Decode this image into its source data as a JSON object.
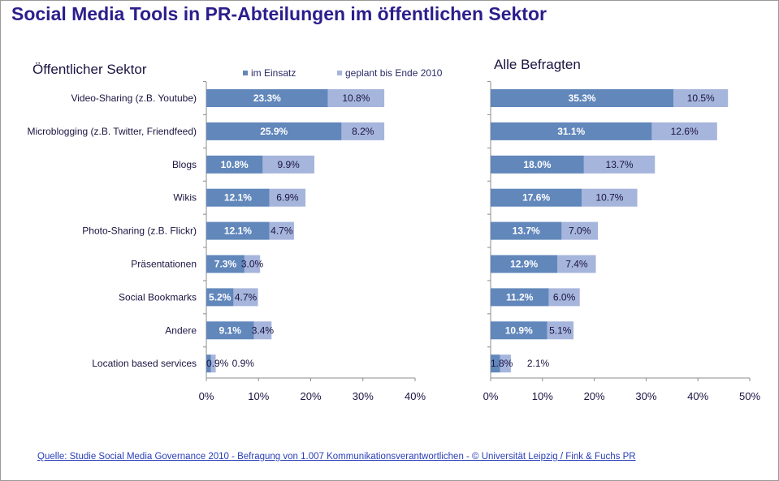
{
  "title": "Social Media Tools in PR-Abteilungen im öffentlichen Sektor",
  "legend": {
    "series1": "im Einsatz",
    "series2": "geplant bis Ende 2010"
  },
  "colors": {
    "series1": "#6187bb",
    "series2": "#a6b5dc",
    "title": "#2b1e8c"
  },
  "source": "Quelle: Studie Social Media Governance 2010 - Befragung von 1.007 Kommunikationsverantwortlichen  - ©  Universität Leipzig / Fink & Fuchs PR",
  "chart_data": [
    {
      "type": "bar",
      "orientation": "horizontal",
      "stacked": true,
      "title": "Öffentlicher Sektor",
      "categories": [
        "Video-Sharing (z.B. Youtube)",
        "Microblogging (z.B. Twitter, Friendfeed)",
        "Blogs",
        "Wikis",
        "Photo-Sharing (z.B. Flickr)",
        "Präsentationen",
        "Social Bookmarks",
        "Andere",
        "Location based services"
      ],
      "series": [
        {
          "name": "im Einsatz",
          "values": [
            23.3,
            25.9,
            10.8,
            12.1,
            12.1,
            7.3,
            5.2,
            9.1,
            0.9
          ]
        },
        {
          "name": "geplant bis Ende 2010",
          "values": [
            10.8,
            8.2,
            9.9,
            6.9,
            4.7,
            3.0,
            4.7,
            3.4,
            0.9
          ]
        }
      ],
      "labels1": [
        "23.3%",
        "25.9%",
        "10.8%",
        "12.1%",
        "12.1%",
        "7.3%",
        "5.2%",
        "9.1%",
        "0.9%"
      ],
      "labels2": [
        "10.8%",
        "8.2%",
        "9.9%",
        "6.9%",
        "4.7%",
        "3.0%",
        "4.7%",
        "3.4%",
        "0.9%"
      ],
      "xlim": [
        0,
        40
      ],
      "xticks": [
        "0%",
        "10%",
        "20%",
        "30%",
        "40%"
      ],
      "legend_position": "top",
      "grid": false
    },
    {
      "type": "bar",
      "orientation": "horizontal",
      "stacked": true,
      "title": "Alle Befragten",
      "categories": [
        "Video-Sharing (z.B. Youtube)",
        "Microblogging (z.B. Twitter, Friendfeed)",
        "Blogs",
        "Wikis",
        "Photo-Sharing (z.B. Flickr)",
        "Präsentationen",
        "Social Bookmarks",
        "Andere",
        "Location based services"
      ],
      "series": [
        {
          "name": "im Einsatz",
          "values": [
            35.3,
            31.1,
            18.0,
            17.6,
            13.7,
            12.9,
            11.2,
            10.9,
            1.8
          ]
        },
        {
          "name": "geplant bis Ende 2010",
          "values": [
            10.5,
            12.6,
            13.7,
            10.7,
            7.0,
            7.4,
            6.0,
            5.1,
            2.1
          ]
        }
      ],
      "labels1": [
        "35.3%",
        "31.1%",
        "18.0%",
        "17.6%",
        "13.7%",
        "12.9%",
        "11.2%",
        "10.9%",
        "1.8%"
      ],
      "labels2": [
        "10.5%",
        "12.6%",
        "13.7%",
        "10.7%",
        "7.0%",
        "7.4%",
        "6.0%",
        "5.1%",
        "2.1%"
      ],
      "xlim": [
        0,
        50
      ],
      "xticks": [
        "0%",
        "10%",
        "20%",
        "30%",
        "40%",
        "50%"
      ],
      "grid": false
    }
  ]
}
